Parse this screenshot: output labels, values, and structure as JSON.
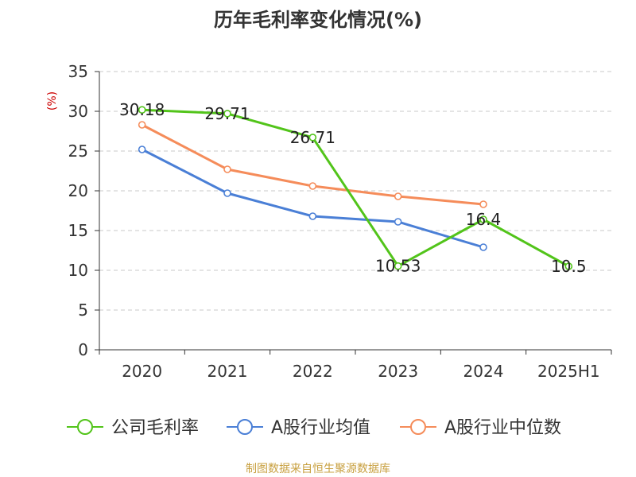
{
  "chart_data": {
    "type": "line",
    "title": "历年毛利率变化情况(%)",
    "ylabel": "(%)",
    "xlabel": "",
    "categories": [
      "2020",
      "2021",
      "2022",
      "2023",
      "2024",
      "2025H1"
    ],
    "ylim": [
      0,
      35
    ],
    "yticks": [
      0,
      5,
      10,
      15,
      20,
      25,
      30,
      35
    ],
    "grid": "horizontal-dashed",
    "legend_position": "bottom",
    "series": [
      {
        "name": "公司毛利率",
        "color": "#52c41a",
        "values": [
          30.18,
          29.71,
          26.71,
          10.53,
          16.4,
          10.5
        ],
        "labels": [
          "30.18",
          "29.71",
          "26.71",
          "10.53",
          "16.4",
          "10.5"
        ]
      },
      {
        "name": "A股行业均值",
        "color": "#4a7fd6",
        "values": [
          25.2,
          19.7,
          16.8,
          16.1,
          12.9,
          null
        ]
      },
      {
        "name": "A股行业中位数",
        "color": "#f58c5a",
        "values": [
          28.3,
          22.7,
          20.6,
          19.3,
          18.3,
          null
        ]
      }
    ],
    "source": "制图数据来自恒生聚源数据库"
  }
}
